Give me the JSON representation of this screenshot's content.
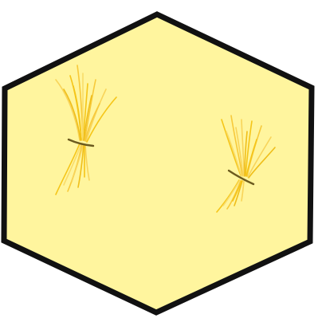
{
  "tile": {
    "terrain": "wheat-field",
    "fill_color": "#FFF59E",
    "border_color": "#111111"
  },
  "resources": [
    {
      "name": "wheat-bundle",
      "count": 1,
      "color": "#F5C518",
      "band_color": "#6B5A1E"
    },
    {
      "name": "wheat-bundle",
      "count": 1,
      "color": "#F5C518",
      "band_color": "#6B5A1E"
    }
  ]
}
